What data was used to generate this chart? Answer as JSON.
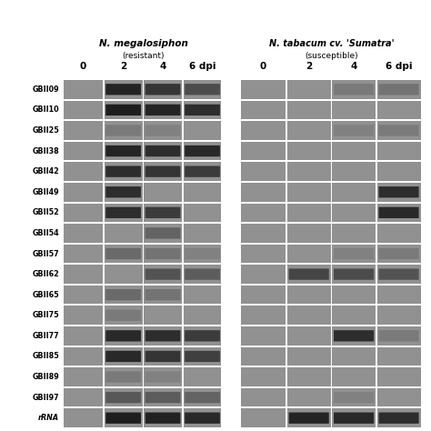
{
  "title1": "N. megalosiphon",
  "title1_sub": "(resistant)",
  "title2": "N. tabacum cv. 'Sumatra'",
  "title2_sub": "(susceptible)",
  "col_labels": [
    "0",
    "2",
    "4",
    "6 dpi"
  ],
  "row_labels": [
    "GBII09",
    "GBII10",
    "GBII25",
    "GBII38",
    "GBII42",
    "GBII49",
    "GBII52",
    "GBII54",
    "GBII57",
    "GBII62",
    "GBII65",
    "GBII75",
    "GBII77",
    "GBII85",
    "GBII89",
    "GBII97",
    "rRNA"
  ],
  "fig_bg": "#ffffff",
  "panel_bg": 0.55,
  "left_lanes": [
    [
      [
        0.45
      ],
      [
        0.92
      ],
      [
        0.85
      ],
      [
        0.75
      ]
    ],
    [
      [
        0.45
      ],
      [
        0.95
      ],
      [
        0.92
      ],
      [
        0.88
      ]
    ],
    [
      [
        0.45
      ],
      [
        0.55
      ],
      [
        0.52
      ],
      [
        0.48
      ]
    ],
    [
      [
        0.45
      ],
      [
        0.92
      ],
      [
        0.88
      ],
      [
        0.9
      ]
    ],
    [
      [
        0.45
      ],
      [
        0.88
      ],
      [
        0.85
      ],
      [
        0.82
      ]
    ],
    [
      [
        0.45
      ],
      [
        0.88
      ],
      [
        0.45
      ],
      [
        0.45
      ]
    ],
    [
      [
        0.45
      ],
      [
        0.88
      ],
      [
        0.82
      ],
      [
        0.45
      ]
    ],
    [
      [
        0.45
      ],
      [
        0.45
      ],
      [
        0.65
      ],
      [
        0.45
      ]
    ],
    [
      [
        0.45
      ],
      [
        0.62
      ],
      [
        0.58
      ],
      [
        0.52
      ]
    ],
    [
      [
        0.45
      ],
      [
        0.45
      ],
      [
        0.72
      ],
      [
        0.68
      ]
    ],
    [
      [
        0.45
      ],
      [
        0.62
      ],
      [
        0.58
      ],
      [
        0.45
      ]
    ],
    [
      [
        0.45
      ],
      [
        0.55
      ],
      [
        0.5
      ],
      [
        0.45
      ]
    ],
    [
      [
        0.45
      ],
      [
        0.9
      ],
      [
        0.88
      ],
      [
        0.82
      ]
    ],
    [
      [
        0.45
      ],
      [
        0.9
      ],
      [
        0.85
      ],
      [
        0.8
      ]
    ],
    [
      [
        0.45
      ],
      [
        0.55
      ],
      [
        0.52
      ],
      [
        0.48
      ]
    ],
    [
      [
        0.45
      ],
      [
        0.7
      ],
      [
        0.68
      ],
      [
        0.65
      ]
    ],
    [
      [
        0.45
      ],
      [
        0.95
      ],
      [
        0.93
      ],
      [
        0.9
      ]
    ]
  ],
  "right_lanes": [
    [
      [
        0.45
      ],
      [
        0.45
      ],
      [
        0.55
      ],
      [
        0.58
      ]
    ],
    [
      [
        0.45
      ],
      [
        0.45
      ],
      [
        0.45
      ],
      [
        0.45
      ]
    ],
    [
      [
        0.45
      ],
      [
        0.45
      ],
      [
        0.52
      ],
      [
        0.55
      ]
    ],
    [
      [
        0.45
      ],
      [
        0.45
      ],
      [
        0.45
      ],
      [
        0.45
      ]
    ],
    [
      [
        0.45
      ],
      [
        0.45
      ],
      [
        0.45
      ],
      [
        0.45
      ]
    ],
    [
      [
        0.45
      ],
      [
        0.45
      ],
      [
        0.45
      ],
      [
        0.88
      ]
    ],
    [
      [
        0.45
      ],
      [
        0.45
      ],
      [
        0.45
      ],
      [
        0.9
      ]
    ],
    [
      [
        0.45
      ],
      [
        0.48
      ],
      [
        0.5
      ],
      [
        0.45
      ]
    ],
    [
      [
        0.45
      ],
      [
        0.45
      ],
      [
        0.52
      ],
      [
        0.55
      ]
    ],
    [
      [
        0.45
      ],
      [
        0.78
      ],
      [
        0.75
      ],
      [
        0.72
      ]
    ],
    [
      [
        0.45
      ],
      [
        0.45
      ],
      [
        0.45
      ],
      [
        0.45
      ]
    ],
    [
      [
        0.45
      ],
      [
        0.45
      ],
      [
        0.45
      ],
      [
        0.45
      ]
    ],
    [
      [
        0.45
      ],
      [
        0.45
      ],
      [
        0.88
      ],
      [
        0.55
      ]
    ],
    [
      [
        0.45
      ],
      [
        0.45
      ],
      [
        0.45
      ],
      [
        0.45
      ]
    ],
    [
      [
        0.45
      ],
      [
        0.45
      ],
      [
        0.45
      ],
      [
        0.45
      ]
    ],
    [
      [
        0.45
      ],
      [
        0.48
      ],
      [
        0.52
      ],
      [
        0.45
      ]
    ],
    [
      [
        0.45
      ],
      [
        0.92
      ],
      [
        0.9
      ],
      [
        0.88
      ]
    ]
  ]
}
